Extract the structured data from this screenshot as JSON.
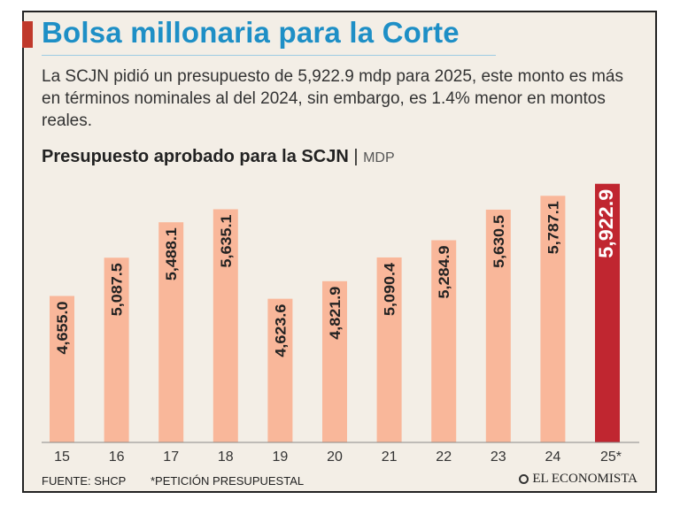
{
  "header": {
    "title": "Bolsa millonaria para la Corte",
    "subtitle": "La SCJN pidió un presupuesto de 5,922.9 mdp para 2025, este monto es más en términos nominales al del 2024, sin embargo, es 1.4% menor en montos reales."
  },
  "chart_heading": {
    "title": "Presupuesto aprobado para la SCJN",
    "separator": "|",
    "unit": "MDP"
  },
  "footer": {
    "source": "FUENTE: SHCP",
    "note": "*PETICIÓN PRESUPUESTAL",
    "logo": "EL ECONOMISTA"
  },
  "colors": {
    "accent": "#c0392b",
    "title": "#1e8fc6",
    "bar": "#f9b79a",
    "highlight": "#c02630",
    "background": "#f3eee6"
  },
  "chart_data": {
    "type": "bar",
    "title": "Presupuesto aprobado para la SCJN",
    "ylabel": "MDP",
    "xlabel": "",
    "categories": [
      "15",
      "16",
      "17",
      "18",
      "19",
      "20",
      "21",
      "22",
      "23",
      "24",
      "25*"
    ],
    "values": [
      4655.0,
      5087.5,
      5488.1,
      5635.1,
      4623.6,
      4821.9,
      5090.4,
      5284.9,
      5630.5,
      5787.1,
      5922.9
    ],
    "labels": [
      "4,655.0",
      "5,087.5",
      "5,488.1",
      "5,635.1",
      "4,623.6",
      "4,821.9",
      "5,090.4",
      "5,284.9",
      "5,630.5",
      "5,787.1",
      "5,922.9"
    ],
    "highlight_index": 10,
    "ylim": [
      3000,
      6000
    ],
    "grid": false
  }
}
